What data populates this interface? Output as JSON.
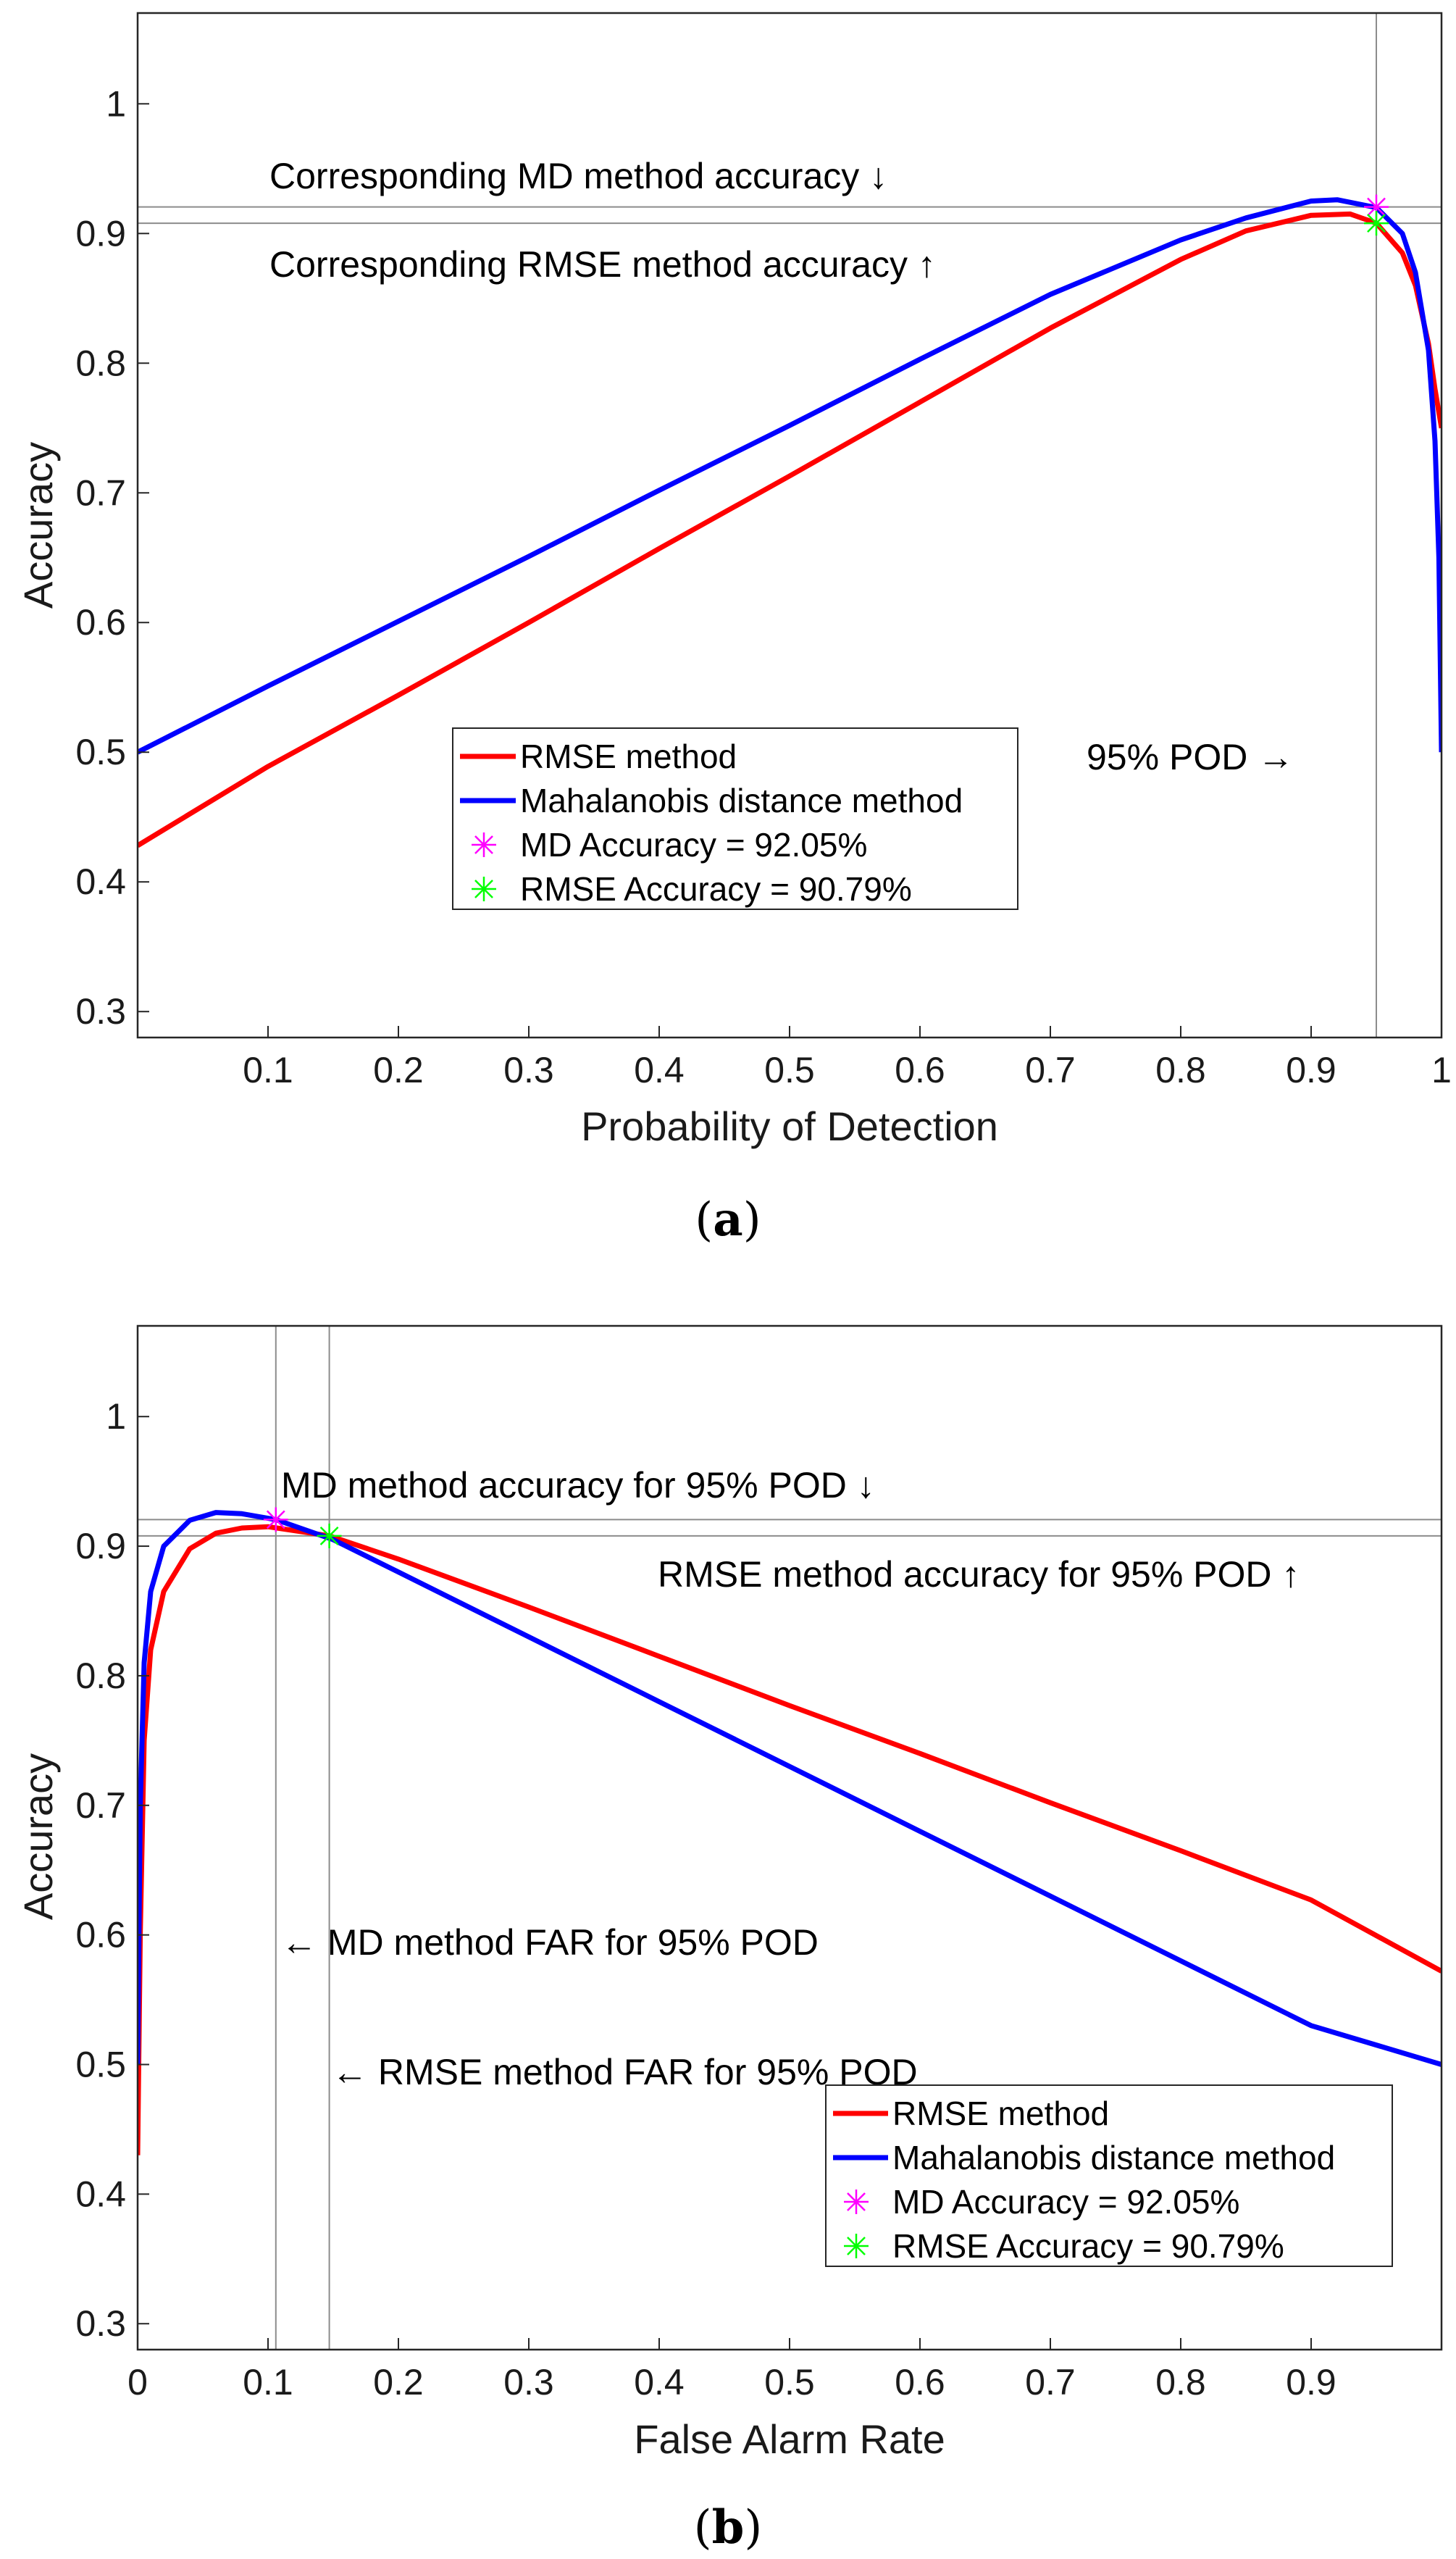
{
  "chart_data": [
    {
      "type": "line",
      "panel": "a",
      "caption_open": "(",
      "caption_letter": "a",
      "caption_close": ")",
      "xlabel": "Probability of Detection",
      "ylabel": "Accuracy",
      "xlim": [
        0,
        1
      ],
      "ylim": [
        0.28,
        1.07
      ],
      "xticks": [
        "0.1",
        "0.2",
        "0.3",
        "0.4",
        "0.5",
        "0.6",
        "0.7",
        "0.8",
        "0.9",
        "1"
      ],
      "yticks": [
        "0.3",
        "0.4",
        "0.5",
        "0.6",
        "0.7",
        "0.8",
        "0.9",
        "1"
      ],
      "series": [
        {
          "name": "RMSE method",
          "color": "#ff0000",
          "x": [
            0,
            0.1,
            0.2,
            0.3,
            0.4,
            0.5,
            0.6,
            0.7,
            0.8,
            0.85,
            0.9,
            0.93,
            0.95,
            0.97,
            0.98,
            0.99,
            0.995,
            1.0
          ],
          "y": [
            0.428,
            0.489,
            0.544,
            0.6,
            0.657,
            0.713,
            0.77,
            0.827,
            0.88,
            0.902,
            0.914,
            0.915,
            0.908,
            0.885,
            0.86,
            0.815,
            0.78,
            0.75
          ]
        },
        {
          "name": "Mahalanobis distance method",
          "color": "#0000ff",
          "x": [
            0,
            0.1,
            0.2,
            0.3,
            0.4,
            0.5,
            0.6,
            0.7,
            0.8,
            0.85,
            0.9,
            0.92,
            0.95,
            0.97,
            0.98,
            0.99,
            0.995,
            0.998,
            1.0
          ],
          "y": [
            0.5,
            0.551,
            0.601,
            0.651,
            0.702,
            0.752,
            0.803,
            0.853,
            0.895,
            0.912,
            0.925,
            0.926,
            0.92,
            0.9,
            0.87,
            0.81,
            0.74,
            0.65,
            0.5
          ]
        }
      ],
      "markers": [
        {
          "name": "MD Accuracy = 92.05%",
          "color": "#ff00ff",
          "x": 0.95,
          "y": 0.9205
        },
        {
          "name": "RMSE Accuracy = 90.79%",
          "color": "#00ff00",
          "x": 0.95,
          "y": 0.9079
        }
      ],
      "reference_lines": {
        "horizontal": [
          0.9205,
          0.9079
        ],
        "vertical": [
          0.95
        ]
      },
      "annotations": [
        {
          "text": "Corresponding MD method accuracy ↓",
          "x": 0.1,
          "y": 0.955
        },
        {
          "text": "Corresponding RMSE method accuracy ↑",
          "x": 0.1,
          "y": 0.885
        },
        {
          "text": "95% POD →",
          "x": 0.735,
          "y": 0.5
        }
      ],
      "legend_position": "center"
    },
    {
      "type": "line",
      "panel": "b",
      "caption_open": "(",
      "caption_letter": "b",
      "caption_close": ")",
      "xlabel": "False Alarm Rate",
      "ylabel": "Accuracy",
      "xlim": [
        0,
        1
      ],
      "ylim": [
        0.28,
        1.07
      ],
      "xticks": [
        "0",
        "0.1",
        "0.2",
        "0.3",
        "0.4",
        "0.5",
        "0.6",
        "0.7",
        "0.8",
        "0.9"
      ],
      "yticks": [
        "0.3",
        "0.4",
        "0.5",
        "0.6",
        "0.7",
        "0.8",
        "0.9",
        "1"
      ],
      "series": [
        {
          "name": "RMSE method",
          "color": "#ff0000",
          "x": [
            0,
            0.002,
            0.005,
            0.01,
            0.02,
            0.04,
            0.06,
            0.08,
            0.1,
            0.147,
            0.2,
            0.3,
            0.4,
            0.5,
            0.6,
            0.7,
            0.8,
            0.9,
            1.0
          ],
          "y": [
            0.43,
            0.6,
            0.75,
            0.82,
            0.865,
            0.898,
            0.91,
            0.914,
            0.915,
            0.908,
            0.89,
            0.853,
            0.815,
            0.777,
            0.74,
            0.702,
            0.665,
            0.627,
            0.572
          ]
        },
        {
          "name": "Mahalanobis distance method",
          "color": "#0000ff",
          "x": [
            0,
            0.002,
            0.005,
            0.01,
            0.02,
            0.04,
            0.06,
            0.08,
            0.106,
            0.15,
            0.2,
            0.3,
            0.4,
            0.5,
            0.6,
            0.7,
            0.8,
            0.9,
            1.0
          ],
          "y": [
            0.5,
            0.7,
            0.81,
            0.865,
            0.9,
            0.92,
            0.926,
            0.925,
            0.9205,
            0.905,
            0.88,
            0.83,
            0.78,
            0.73,
            0.68,
            0.63,
            0.58,
            0.53,
            0.5
          ]
        }
      ],
      "markers": [
        {
          "name": "MD Accuracy = 92.05%",
          "color": "#ff00ff",
          "x": 0.106,
          "y": 0.9205
        },
        {
          "name": "RMSE Accuracy = 90.79%",
          "color": "#00ff00",
          "x": 0.147,
          "y": 0.9079
        }
      ],
      "reference_lines": {
        "horizontal": [
          0.9205,
          0.9079
        ],
        "vertical": [
          0.106,
          0.147
        ]
      },
      "annotations": [
        {
          "text": "MD method accuracy for 95% POD ↓",
          "x": 0.11,
          "y": 0.945
        },
        {
          "text": "RMSE method accuracy for 95% POD ↑",
          "x": 0.4,
          "y": 0.875
        },
        {
          "text": "← MD method FAR for 95% POD",
          "x": 0.11,
          "y": 0.59
        },
        {
          "text": "← RMSE method FAR for 95% POD",
          "x": 0.15,
          "y": 0.49
        }
      ],
      "legend_position": "bottom-right"
    }
  ]
}
